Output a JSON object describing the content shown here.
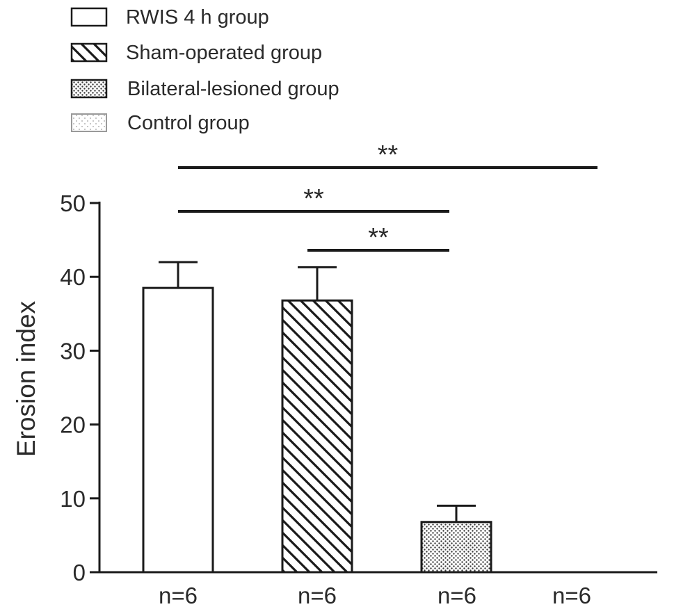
{
  "chart_data": {
    "type": "bar",
    "title": "",
    "xlabel": "",
    "ylabel": "Erosion index",
    "ylim": [
      0,
      50
    ],
    "yticks": [
      0,
      10,
      20,
      30,
      40,
      50
    ],
    "grid": false,
    "legend_position": "top-left",
    "categories": [
      "n=6",
      "n=6",
      "n=6",
      "n=6"
    ],
    "series": [
      {
        "name": "RWIS 4 h group",
        "value": 38.5,
        "error": 3.5,
        "pattern": "none"
      },
      {
        "name": "Sham-operated group",
        "value": 36.8,
        "error": 4.5,
        "pattern": "diagonal-hatch"
      },
      {
        "name": "Bilateral-lesioned group",
        "value": 6.8,
        "error": 2.2,
        "pattern": "dense-dots"
      },
      {
        "name": "Control group",
        "value": 0,
        "error": 0,
        "pattern": "light-dots"
      }
    ],
    "significance": [
      {
        "from": 0,
        "to": 3,
        "label": "**"
      },
      {
        "from": 0,
        "to": 2,
        "label": "**"
      },
      {
        "from": 1,
        "to": 2,
        "label": "**"
      }
    ]
  }
}
